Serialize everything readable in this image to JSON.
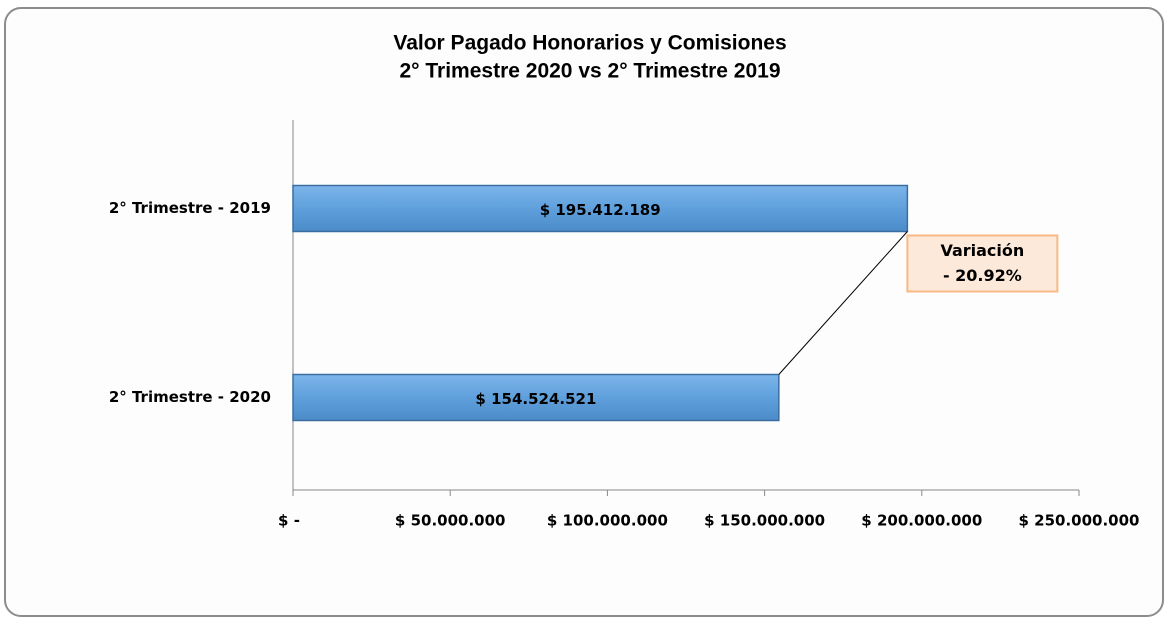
{
  "chart_data": {
    "type": "hbar",
    "title": "Valor Pagado Honorarios y Comisiones",
    "subtitle": "2° Trimestre 2020 vs 2° Trimestre 2019",
    "categories": [
      "2° Trimestre - 2019",
      "2° Trimestre - 2020"
    ],
    "values": [
      195412189,
      154524521
    ],
    "value_labels": [
      "$ 195.412.189",
      "$ 154.524.521"
    ],
    "color": "#5fa0dc",
    "xlim": [
      0,
      250000000
    ],
    "xticks": [
      {
        "value": 0,
        "label": "$ -"
      },
      {
        "value": 50000000,
        "label": "$ 50.000.000"
      },
      {
        "value": 100000000,
        "label": "$ 100.000.000"
      },
      {
        "value": 150000000,
        "label": "$ 150.000.000"
      },
      {
        "value": 200000000,
        "label": "$ 200.000.000"
      },
      {
        "value": 250000000,
        "label": "$ 250.000.000"
      }
    ],
    "annotation": [
      "Variación",
      "- 20.92%"
    ]
  }
}
